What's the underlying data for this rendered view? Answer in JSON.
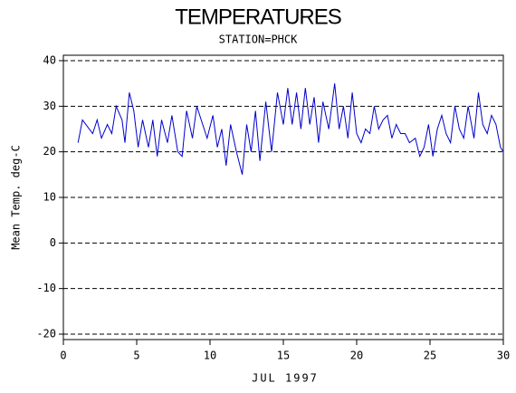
{
  "chart_data": {
    "type": "line",
    "title": "TEMPERATURES",
    "subtitle": "STATION=PHCK",
    "x_label": "JUL 1997",
    "y_label": "Mean Temp. deg-C",
    "x": [
      1.0,
      1.3,
      2.0,
      2.3,
      2.6,
      3.0,
      3.3,
      3.6,
      4.0,
      4.2,
      4.5,
      4.8,
      5.1,
      5.4,
      5.8,
      6.1,
      6.4,
      6.7,
      7.1,
      7.4,
      7.8,
      8.1,
      8.4,
      8.8,
      9.1,
      9.5,
      9.8,
      10.2,
      10.5,
      10.8,
      11.1,
      11.4,
      11.8,
      12.2,
      12.5,
      12.8,
      13.1,
      13.4,
      13.8,
      14.2,
      14.6,
      15.0,
      15.3,
      15.6,
      15.9,
      16.2,
      16.5,
      16.8,
      17.1,
      17.4,
      17.7,
      18.1,
      18.5,
      18.8,
      19.1,
      19.4,
      19.7,
      20.0,
      20.3,
      20.6,
      20.9,
      21.2,
      21.5,
      21.8,
      22.1,
      22.4,
      22.7,
      23.0,
      23.3,
      23.6,
      24.0,
      24.3,
      24.6,
      24.9,
      25.2,
      25.5,
      25.8,
      26.1,
      26.4,
      26.7,
      27.0,
      27.3,
      27.6,
      28.0,
      28.3,
      28.6,
      28.9,
      29.2,
      29.5,
      29.8,
      30.0
    ],
    "series": [
      {
        "name": "Mean Temp",
        "color": "#0000cc",
        "values": [
          22,
          27,
          24,
          27,
          23,
          26,
          24,
          30,
          27,
          22,
          33,
          29,
          21,
          27,
          21,
          27,
          19,
          27,
          22,
          28,
          20,
          19,
          29,
          23,
          30,
          26,
          23,
          28,
          21,
          25,
          17,
          26,
          20,
          15,
          26,
          20,
          29,
          18,
          31,
          20,
          33,
          26,
          34,
          26,
          33,
          25,
          34,
          26,
          32,
          22,
          31,
          25,
          35,
          25,
          30,
          23,
          33,
          24,
          22,
          25,
          24,
          30,
          25,
          27,
          28,
          23,
          26,
          24,
          24,
          22,
          23,
          19,
          21,
          26,
          19,
          25,
          28,
          24,
          22,
          30,
          25,
          23,
          30,
          23,
          33,
          26,
          24,
          28,
          26,
          21,
          20
        ]
      }
    ],
    "xlim": [
      0,
      30
    ],
    "xticks": [
      0,
      5,
      10,
      15,
      20,
      25,
      30
    ],
    "ylim": [
      -20,
      40
    ],
    "yticks": [
      -20,
      -10,
      0,
      10,
      20,
      30,
      40
    ],
    "grid": true
  }
}
